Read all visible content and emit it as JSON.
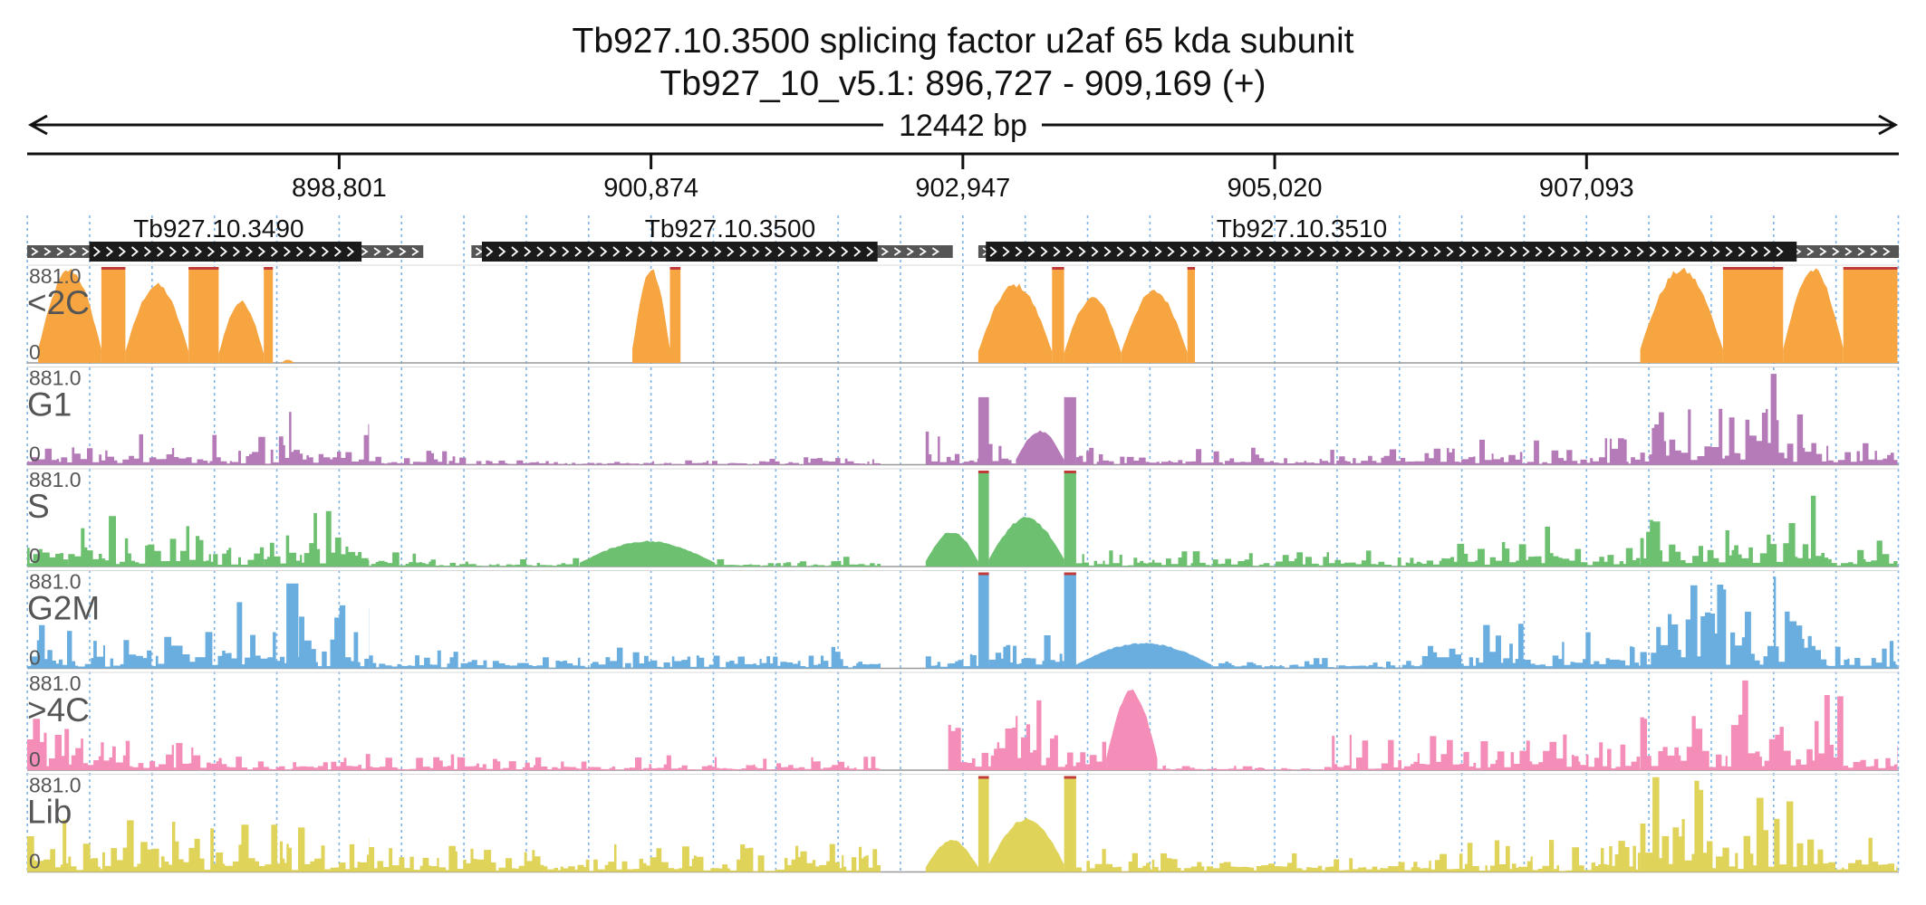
{
  "title": "Tb927.10.3500  splicing factor u2af 65 kda subunit",
  "subtitle": "Tb927_10_v5.1: 896,727 - 909,169 (+)",
  "chart_data": {
    "type": "area",
    "region": {
      "chrom": "Tb927_10_v5.1",
      "start": 896727,
      "end": 909169,
      "strand": "+",
      "length_label": "12442 bp"
    },
    "ticks": [
      {
        "pos": 898801,
        "label": "898,801"
      },
      {
        "pos": 900874,
        "label": "900,874"
      },
      {
        "pos": 902947,
        "label": "902,947"
      },
      {
        "pos": 905020,
        "label": "905,020"
      },
      {
        "pos": 907093,
        "label": "907,093"
      }
    ],
    "genes": [
      {
        "name": "Tb927.10.3490",
        "start": 896727,
        "end": 899360,
        "cds_start": 897140,
        "cds_end": 898950,
        "label_pos": 898000
      },
      {
        "name": "Tb927.10.3500",
        "start": 899680,
        "end": 902880,
        "cds_start": 899750,
        "cds_end": 902380,
        "label_pos": 901400
      },
      {
        "name": "Tb927.10.3510",
        "start": 903050,
        "end": 909169,
        "cds_start": 903100,
        "cds_end": 908490,
        "label_pos": 905200
      }
    ],
    "y_max": 881.0,
    "y_max_label": "881.0",
    "y_min_label": "0",
    "tracks": [
      {
        "name": "<2C",
        "color": "#f7a541",
        "segments": [
          {
            "start": 896800,
            "end": 897220,
            "peak": 881,
            "shape": "arch"
          },
          {
            "start": 897220,
            "end": 897380,
            "peak": 881,
            "shape": "flat"
          },
          {
            "start": 897380,
            "end": 897800,
            "peak": 740,
            "shape": "arch"
          },
          {
            "start": 897800,
            "end": 898000,
            "peak": 881,
            "shape": "flat"
          },
          {
            "start": 898000,
            "end": 898300,
            "peak": 580,
            "shape": "arch"
          },
          {
            "start": 898300,
            "end": 898360,
            "peak": 881,
            "shape": "flat"
          },
          {
            "start": 898420,
            "end": 898500,
            "peak": 30,
            "shape": "arch"
          },
          {
            "start": 900750,
            "end": 901000,
            "peak": 881,
            "shape": "arch"
          },
          {
            "start": 901000,
            "end": 901070,
            "peak": 881,
            "shape": "flat"
          },
          {
            "start": 903050,
            "end": 903540,
            "peak": 740,
            "shape": "arch"
          },
          {
            "start": 903540,
            "end": 903620,
            "peak": 881,
            "shape": "flat"
          },
          {
            "start": 903620,
            "end": 904000,
            "peak": 620,
            "shape": "arch"
          },
          {
            "start": 904000,
            "end": 904440,
            "peak": 680,
            "shape": "arch"
          },
          {
            "start": 904440,
            "end": 904490,
            "peak": 881,
            "shape": "flat"
          },
          {
            "start": 907450,
            "end": 908000,
            "peak": 881,
            "shape": "arch"
          },
          {
            "start": 908000,
            "end": 908400,
            "peak": 881,
            "shape": "flat"
          },
          {
            "start": 908400,
            "end": 908800,
            "peak": 881,
            "shape": "arch"
          },
          {
            "start": 908800,
            "end": 909160,
            "peak": 881,
            "shape": "flat"
          }
        ]
      },
      {
        "name": "G1",
        "color": "#b57ab8",
        "segments": [
          {
            "start": 896727,
            "end": 898400,
            "peak": 280,
            "shape": "noise"
          },
          {
            "start": 898400,
            "end": 899000,
            "peak": 500,
            "shape": "noise"
          },
          {
            "start": 899000,
            "end": 899600,
            "peak": 130,
            "shape": "noise"
          },
          {
            "start": 899600,
            "end": 902400,
            "peak": 70,
            "shape": "noise"
          },
          {
            "start": 902700,
            "end": 903300,
            "peak": 330,
            "shape": "noise"
          },
          {
            "start": 903050,
            "end": 903120,
            "peak": 620,
            "shape": "flat"
          },
          {
            "start": 903300,
            "end": 903620,
            "peak": 320,
            "shape": "arch"
          },
          {
            "start": 903620,
            "end": 903700,
            "peak": 620,
            "shape": "flat"
          },
          {
            "start": 903700,
            "end": 905900,
            "peak": 160,
            "shape": "noise"
          },
          {
            "start": 905900,
            "end": 907450,
            "peak": 260,
            "shape": "noise"
          },
          {
            "start": 907450,
            "end": 908700,
            "peak": 881,
            "shape": "noise"
          },
          {
            "start": 908700,
            "end": 909160,
            "peak": 220,
            "shape": "noise"
          }
        ]
      },
      {
        "name": "S",
        "color": "#6cc070",
        "segments": [
          {
            "start": 896727,
            "end": 897000,
            "peak": 700,
            "shape": "noise"
          },
          {
            "start": 897000,
            "end": 898300,
            "peak": 500,
            "shape": "noise"
          },
          {
            "start": 898300,
            "end": 899000,
            "peak": 530,
            "shape": "noise"
          },
          {
            "start": 899000,
            "end": 899600,
            "peak": 220,
            "shape": "noise"
          },
          {
            "start": 900400,
            "end": 901300,
            "peak": 240,
            "shape": "arch"
          },
          {
            "start": 899600,
            "end": 902400,
            "peak": 90,
            "shape": "noise"
          },
          {
            "start": 902700,
            "end": 903050,
            "peak": 330,
            "shape": "arch"
          },
          {
            "start": 903050,
            "end": 903120,
            "peak": 881,
            "shape": "flat"
          },
          {
            "start": 903120,
            "end": 903620,
            "peak": 460,
            "shape": "arch"
          },
          {
            "start": 903620,
            "end": 903700,
            "peak": 881,
            "shape": "flat"
          },
          {
            "start": 903700,
            "end": 906000,
            "peak": 150,
            "shape": "noise"
          },
          {
            "start": 906000,
            "end": 907450,
            "peak": 380,
            "shape": "noise"
          },
          {
            "start": 907450,
            "end": 908700,
            "peak": 881,
            "shape": "noise"
          },
          {
            "start": 908700,
            "end": 909160,
            "peak": 280,
            "shape": "noise"
          }
        ]
      },
      {
        "name": "G2M",
        "color": "#6aaee0",
        "segments": [
          {
            "start": 896727,
            "end": 897300,
            "peak": 440,
            "shape": "noise"
          },
          {
            "start": 897300,
            "end": 899000,
            "peak": 650,
            "shape": "noise"
          },
          {
            "start": 898450,
            "end": 898530,
            "peak": 780,
            "shape": "flat"
          },
          {
            "start": 899000,
            "end": 902400,
            "peak": 200,
            "shape": "noise"
          },
          {
            "start": 902700,
            "end": 903050,
            "peak": 280,
            "shape": "noise"
          },
          {
            "start": 903050,
            "end": 903120,
            "peak": 881,
            "shape": "flat"
          },
          {
            "start": 903120,
            "end": 903620,
            "peak": 380,
            "shape": "noise"
          },
          {
            "start": 903620,
            "end": 903700,
            "peak": 881,
            "shape": "flat"
          },
          {
            "start": 903700,
            "end": 904600,
            "peak": 240,
            "shape": "arch"
          },
          {
            "start": 904600,
            "end": 906000,
            "peak": 120,
            "shape": "noise"
          },
          {
            "start": 906000,
            "end": 907450,
            "peak": 420,
            "shape": "noise"
          },
          {
            "start": 907450,
            "end": 908700,
            "peak": 881,
            "shape": "noise"
          },
          {
            "start": 908700,
            "end": 909160,
            "peak": 460,
            "shape": "noise"
          }
        ]
      },
      {
        "name": ">4C",
        "color": "#f48db8",
        "segments": [
          {
            "start": 896727,
            "end": 897100,
            "peak": 881,
            "shape": "noise"
          },
          {
            "start": 897100,
            "end": 898000,
            "peak": 280,
            "shape": "noise"
          },
          {
            "start": 898000,
            "end": 899600,
            "peak": 150,
            "shape": "noise"
          },
          {
            "start": 899600,
            "end": 902400,
            "peak": 140,
            "shape": "noise"
          },
          {
            "start": 902850,
            "end": 903580,
            "peak": 881,
            "shape": "noise"
          },
          {
            "start": 903580,
            "end": 903900,
            "peak": 320,
            "shape": "noise"
          },
          {
            "start": 903900,
            "end": 904240,
            "peak": 750,
            "shape": "arch"
          },
          {
            "start": 904240,
            "end": 905400,
            "peak": 80,
            "shape": "noise"
          },
          {
            "start": 905400,
            "end": 907450,
            "peak": 330,
            "shape": "noise"
          },
          {
            "start": 907450,
            "end": 908800,
            "peak": 881,
            "shape": "noise"
          },
          {
            "start": 908800,
            "end": 909160,
            "peak": 260,
            "shape": "noise"
          }
        ]
      },
      {
        "name": "Lib",
        "color": "#dfd35a",
        "segments": [
          {
            "start": 896727,
            "end": 897000,
            "peak": 560,
            "shape": "noise"
          },
          {
            "start": 897000,
            "end": 899000,
            "peak": 540,
            "shape": "noise"
          },
          {
            "start": 899000,
            "end": 902400,
            "peak": 260,
            "shape": "noise"
          },
          {
            "start": 902700,
            "end": 903050,
            "peak": 300,
            "shape": "arch"
          },
          {
            "start": 903050,
            "end": 903120,
            "peak": 881,
            "shape": "flat"
          },
          {
            "start": 903120,
            "end": 903620,
            "peak": 500,
            "shape": "arch"
          },
          {
            "start": 903620,
            "end": 903700,
            "peak": 881,
            "shape": "flat"
          },
          {
            "start": 903700,
            "end": 906000,
            "peak": 220,
            "shape": "noise"
          },
          {
            "start": 906000,
            "end": 907450,
            "peak": 300,
            "shape": "noise"
          },
          {
            "start": 907450,
            "end": 908700,
            "peak": 881,
            "shape": "noise"
          },
          {
            "start": 908700,
            "end": 909160,
            "peak": 380,
            "shape": "noise"
          }
        ]
      }
    ]
  }
}
